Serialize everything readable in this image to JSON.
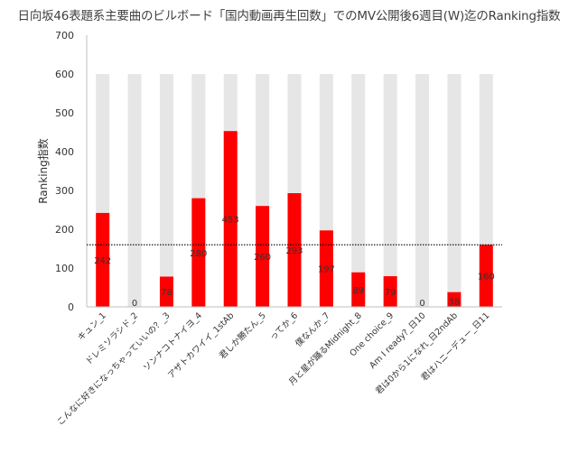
{
  "chart_data": {
    "type": "bar",
    "title": "日向坂46表題系主要曲のビルボード「国内動画再生回数」でのMV公開後6週目(W)迄のRanking指数",
    "xlabel": "",
    "ylabel": "Ranking指数",
    "ylim": [
      0,
      700
    ],
    "yticks": [
      0,
      100,
      200,
      300,
      400,
      500,
      600,
      700
    ],
    "grid": false,
    "legend": "none",
    "reference_line": 160,
    "categories": [
      "キュン_1",
      "ドレミソラシド_2",
      "こんなに好きになっちゃっていいの？_3",
      "ソンナコトナイヨ_4",
      "アザトカワイイ_1stAb",
      "君しか勝たん_5",
      "ってか_6",
      "僕なんか_7",
      "月と星が踊るMidnight_8",
      "One choice_9",
      "Am I ready?_日10",
      "君は0から1になれ_日2ndAb",
      "君はハニーデュー_日11"
    ],
    "series": [
      {
        "values": [
          242,
          0,
          78,
          280,
          453,
          260,
          293,
          197,
          89,
          79,
          0,
          38,
          160
        ],
        "color": "#ff0000"
      },
      {
        "values": [
          600,
          600,
          600,
          600,
          600,
          600,
          600,
          600,
          600,
          600,
          600,
          600,
          600
        ],
        "color": "#e7e6e6"
      }
    ],
    "data_labels": [
      "242",
      "0",
      "78",
      "280",
      "453",
      "260",
      "293",
      "197",
      "89",
      "79",
      "0",
      "38",
      "160"
    ]
  }
}
